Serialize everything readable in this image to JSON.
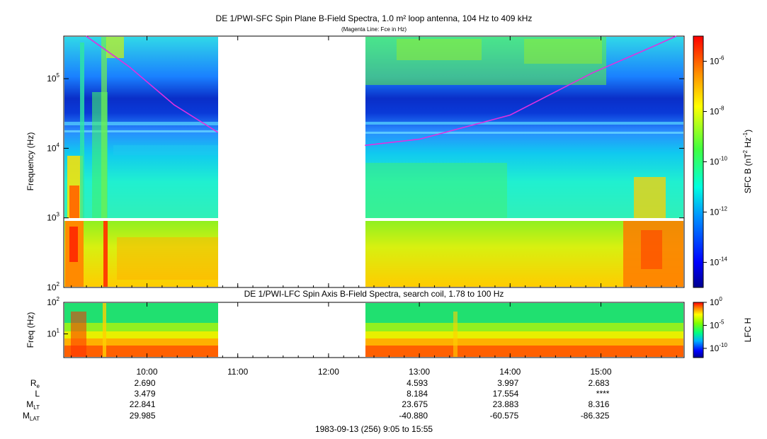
{
  "chart_data": [
    {
      "type": "heatmap",
      "title": "DE 1/PWI-SFC  Spin Plane B-Field Spectra, 1.0 m² loop antenna, 104 Hz to 409 kHz",
      "subtitle": "(Magenta Line: Fce in Hz)",
      "ylabel": "Frequency (Hz)",
      "yscale": "log",
      "ylim": [
        100,
        409000
      ],
      "y_ticks": [
        {
          "value": 100,
          "label": "10",
          "sup": "2"
        },
        {
          "value": 1000,
          "label": "10",
          "sup": "3"
        },
        {
          "value": 10000,
          "label": "10",
          "sup": "4"
        },
        {
          "value": 100000,
          "label": "10",
          "sup": "5"
        }
      ],
      "colorbar": {
        "label": "SFC B (nT",
        "label_sup1": "2",
        "label_mid": " Hz",
        "label_sup2": "-1",
        "label_end": ")",
        "scale": "log",
        "range": [
          1e-15,
          1e-05
        ],
        "ticks": [
          {
            "value": 1e-06,
            "label": "10",
            "sup": "-6"
          },
          {
            "value": 1e-08,
            "label": "10",
            "sup": "-8"
          },
          {
            "value": 1e-10,
            "label": "10",
            "sup": "-10"
          },
          {
            "value": 1e-12,
            "label": "10",
            "sup": "-12"
          },
          {
            "value": 1e-14,
            "label": "10",
            "sup": "-14"
          }
        ]
      },
      "fce_line": {
        "color": "#e030e0",
        "segment1": [
          [
            9.33,
            409000
          ],
          [
            9.8,
            150000
          ],
          [
            10.3,
            42000
          ],
          [
            10.78,
            17000
          ]
        ],
        "segment2": [
          [
            12.4,
            11000
          ],
          [
            13.0,
            13500
          ],
          [
            14.0,
            30000
          ],
          [
            14.9,
            120000
          ],
          [
            15.6,
            300000
          ],
          [
            15.83,
            409000
          ]
        ]
      },
      "data_gaps": [
        [
          10.78,
          12.4
        ]
      ]
    },
    {
      "type": "heatmap",
      "title": "DE 1/PWI-LFC  Spin Axis B-Field Spectra, search coil, 1.78 to 100 Hz",
      "ylabel": "Freq (Hz)",
      "yscale": "log",
      "ylim": [
        1.78,
        100
      ],
      "y_ticks": [
        {
          "value": 10,
          "label": "10",
          "sup": "1"
        },
        {
          "value": 100,
          "label": "10",
          "sup": "2"
        }
      ],
      "colorbar": {
        "label": "LFC H",
        "scale": "log",
        "range": [
          1e-12,
          1
        ],
        "ticks": [
          {
            "value": 1,
            "label": "10",
            "sup": "0"
          },
          {
            "value": 1e-05,
            "label": "10",
            "sup": "-5"
          },
          {
            "value": 1e-10,
            "label": "10",
            "sup": "-10"
          }
        ]
      },
      "data_gaps": [
        [
          10.78,
          12.4
        ]
      ]
    }
  ],
  "time_axis": {
    "start_hours": 9.0833,
    "end_hours": 15.9167,
    "ticks": [
      {
        "hours": 10,
        "label": "10:00"
      },
      {
        "hours": 11,
        "label": "11:00"
      },
      {
        "hours": 12,
        "label": "12:00"
      },
      {
        "hours": 13,
        "label": "13:00"
      },
      {
        "hours": 14,
        "label": "14:00"
      },
      {
        "hours": 15,
        "label": "15:00"
      }
    ]
  },
  "ephemeris": {
    "rows": [
      {
        "label": "R",
        "sub": "e",
        "values": [
          "2.690",
          "",
          "",
          "4.593",
          "3.997",
          "2.683"
        ]
      },
      {
        "label": "L",
        "sub": "",
        "values": [
          "3.479",
          "",
          "",
          "8.184",
          "17.554",
          "****"
        ]
      },
      {
        "label": "M",
        "sub": "LT",
        "values": [
          "22.841",
          "",
          "",
          "23.675",
          "23.883",
          "8.316"
        ]
      },
      {
        "label": "M",
        "sub": "LAT",
        "values": [
          "29.985",
          "",
          "",
          "-40.880",
          "-60.575",
          "-86.325"
        ]
      }
    ]
  },
  "footer": "1983-09-13 (256) 9:05 to 15:55"
}
